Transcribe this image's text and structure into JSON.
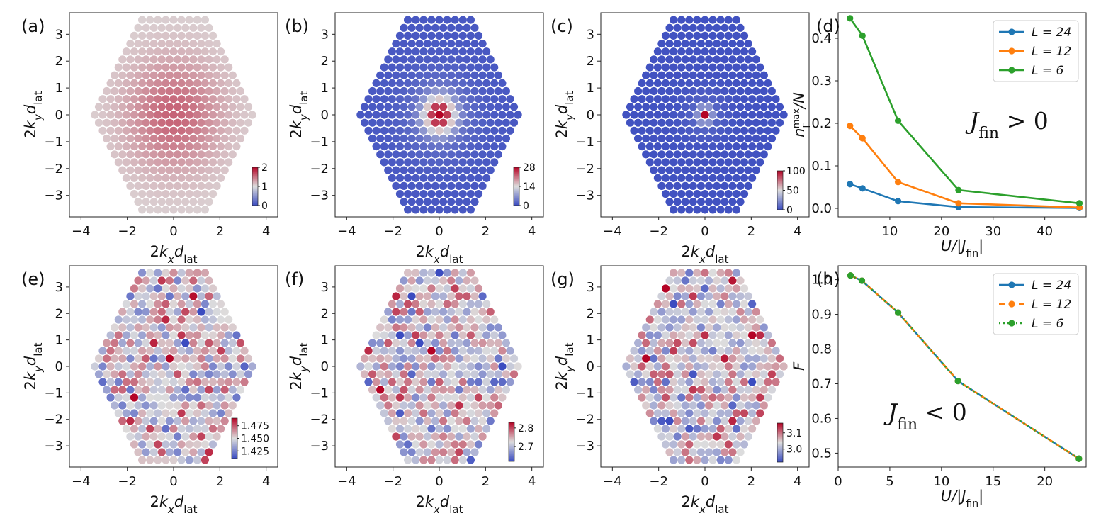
{
  "colors": {
    "L24": "#1f77b4",
    "L12": "#ff7f0e",
    "L6": "#2ca02c",
    "cmap_low": "#3b4cc0",
    "cmap_mid": "#dddddd",
    "cmap_high": "#b40426"
  },
  "common_axes": {
    "x_label": "2k_x d_lat",
    "y_label": "2k_y d_lat",
    "x_ticks": [
      "−4",
      "−2",
      "0",
      "2",
      "4"
    ],
    "y_ticks": [
      "−3",
      "−2",
      "−1",
      "0",
      "1",
      "2",
      "3"
    ]
  },
  "chart_data": [
    {
      "panel": "(a)",
      "type": "heatmap",
      "pattern": "broad",
      "xlim": [
        -4.5,
        4.5
      ],
      "ylim": [
        -3.8,
        3.8
      ],
      "colorbar": {
        "range": [
          0,
          2
        ],
        "tick_values": [
          0,
          1,
          2
        ],
        "tick_labels": [
          "0",
          "1",
          "2"
        ]
      }
    },
    {
      "panel": "(b)",
      "type": "heatmap",
      "pattern": "peak",
      "xlim": [
        -4.5,
        4.5
      ],
      "ylim": [
        -3.8,
        3.8
      ],
      "colorbar": {
        "range": [
          0,
          28
        ],
        "tick_values": [
          0,
          14,
          28
        ],
        "tick_labels": [
          "0",
          "14",
          "28"
        ]
      }
    },
    {
      "panel": "(c)",
      "type": "heatmap",
      "pattern": "sharp",
      "xlim": [
        -4.5,
        4.5
      ],
      "ylim": [
        -3.8,
        3.8
      ],
      "colorbar": {
        "range": [
          0,
          100
        ],
        "tick_values": [
          0,
          50,
          100
        ],
        "tick_labels": [
          "0",
          "50",
          "100"
        ]
      }
    },
    {
      "panel": "(d)",
      "type": "line",
      "xlabel": "U/|J_fin|",
      "ylabel": "n_Γ^max/N",
      "xlim": [
        0,
        48
      ],
      "ylim": [
        -0.02,
        0.46
      ],
      "x_ticks": [
        10,
        20,
        30,
        40
      ],
      "x_tick_labels": [
        "10",
        "20",
        "30",
        "40"
      ],
      "y_ticks": [
        0.0,
        0.1,
        0.2,
        0.3,
        0.4
      ],
      "y_tick_labels": [
        "0.0",
        "0.1",
        "0.2",
        "0.3",
        "0.4"
      ],
      "annotation": "J_fin > 0",
      "series": [
        {
          "name": "L = 24",
          "x": [
            2.3,
            4.7,
            11.6,
            23.3,
            46.7
          ],
          "values": [
            0.057,
            0.047,
            0.017,
            0.003,
            0.001
          ]
        },
        {
          "name": "L = 12",
          "x": [
            2.3,
            4.7,
            11.6,
            23.3,
            46.7
          ],
          "values": [
            0.194,
            0.165,
            0.062,
            0.012,
            0.002
          ]
        },
        {
          "name": "L = 6",
          "x": [
            2.3,
            4.7,
            11.6,
            23.3,
            46.7
          ],
          "values": [
            0.447,
            0.406,
            0.206,
            0.043,
            0.012
          ]
        }
      ]
    },
    {
      "panel": "(e)",
      "type": "heatmap",
      "pattern": "noise",
      "xlim": [
        -4.5,
        4.5
      ],
      "ylim": [
        -3.8,
        3.8
      ],
      "colorbar": {
        "range": [
          1.41,
          1.49
        ],
        "tick_values": [
          1.425,
          1.45,
          1.475
        ],
        "tick_labels": [
          "1.425",
          "1.450",
          "1.475"
        ]
      }
    },
    {
      "panel": "(f)",
      "type": "heatmap",
      "pattern": "noise",
      "xlim": [
        -4.5,
        4.5
      ],
      "ylim": [
        -3.8,
        3.8
      ],
      "colorbar": {
        "range": [
          2.62,
          2.83
        ],
        "tick_values": [
          2.7,
          2.8
        ],
        "tick_labels": [
          "2.7",
          "2.8"
        ]
      }
    },
    {
      "panel": "(g)",
      "type": "heatmap",
      "pattern": "noise",
      "xlim": [
        -4.5,
        4.5
      ],
      "ylim": [
        -3.8,
        3.8
      ],
      "colorbar": {
        "range": [
          2.92,
          3.16
        ],
        "tick_values": [
          3.0,
          3.1
        ],
        "tick_labels": [
          "3.0",
          "3.1"
        ]
      }
    },
    {
      "panel": "(h)",
      "type": "line",
      "xlabel": "U/|J_fin|",
      "ylabel": "F",
      "xlim": [
        0,
        24
      ],
      "ylim": [
        0.46,
        1.04
      ],
      "x_ticks": [
        0,
        5,
        10,
        15,
        20
      ],
      "x_tick_labels": [
        "0",
        "5",
        "10",
        "15",
        "20"
      ],
      "y_ticks": [
        0.5,
        0.6,
        0.7,
        0.8,
        0.9,
        1.0
      ],
      "y_tick_labels": [
        "0.5",
        "0.6",
        "0.7",
        "0.8",
        "0.9",
        "1.0"
      ],
      "annotation": "J_fin < 0",
      "series": [
        {
          "name": "L = 24",
          "style": "solid",
          "x": [
            1.2,
            2.3,
            5.8,
            11.6,
            23.3
          ],
          "values": [
            1.012,
            0.997,
            0.905,
            0.708,
            0.484
          ]
        },
        {
          "name": "L = 12",
          "style": "dashed",
          "x": [
            1.2,
            2.3,
            5.8,
            11.6,
            23.3
          ],
          "values": [
            1.012,
            0.997,
            0.905,
            0.708,
            0.484
          ]
        },
        {
          "name": "L = 6",
          "style": "dotted",
          "x": [
            1.2,
            2.3,
            5.8,
            11.6,
            23.3
          ],
          "values": [
            1.012,
            0.997,
            0.905,
            0.708,
            0.484
          ]
        }
      ]
    }
  ]
}
